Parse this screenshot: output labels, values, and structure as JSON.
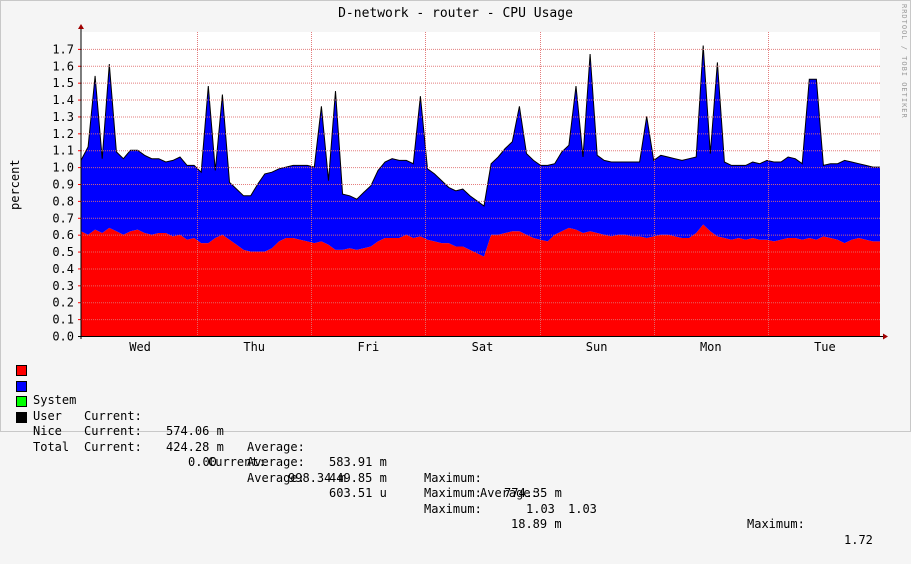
{
  "chart_data": {
    "type": "area",
    "title": "D-network - router - CPU Usage",
    "ylabel": "percent",
    "watermark": "RRDTOOL / TOBI OETIKER",
    "ylim": [
      0,
      1.8
    ],
    "yticks": [
      "0.0",
      "0.1",
      "0.2",
      "0.3",
      "0.4",
      "0.5",
      "0.6",
      "0.7",
      "0.8",
      "0.9",
      "1.0",
      "1.1",
      "1.2",
      "1.3",
      "1.4",
      "1.5",
      "1.6",
      "1.7"
    ],
    "xticks": [
      "Wed",
      "Thu",
      "Fri",
      "Sat",
      "Sun",
      "Mon",
      "Tue"
    ],
    "stacked": true,
    "grid": true,
    "series": [
      {
        "name": "System",
        "color": "#ff0000",
        "values": [
          0.62,
          0.6,
          0.63,
          0.61,
          0.64,
          0.62,
          0.6,
          0.62,
          0.63,
          0.61,
          0.6,
          0.61,
          0.61,
          0.59,
          0.6,
          0.57,
          0.58,
          0.55,
          0.55,
          0.58,
          0.6,
          0.57,
          0.54,
          0.51,
          0.5,
          0.5,
          0.5,
          0.52,
          0.56,
          0.58,
          0.58,
          0.57,
          0.56,
          0.55,
          0.56,
          0.54,
          0.51,
          0.51,
          0.52,
          0.51,
          0.52,
          0.53,
          0.56,
          0.58,
          0.58,
          0.58,
          0.6,
          0.58,
          0.59,
          0.57,
          0.56,
          0.55,
          0.55,
          0.53,
          0.53,
          0.51,
          0.49,
          0.47,
          0.6,
          0.6,
          0.61,
          0.62,
          0.62,
          0.6,
          0.58,
          0.57,
          0.56,
          0.6,
          0.62,
          0.64,
          0.63,
          0.61,
          0.62,
          0.61,
          0.6,
          0.59,
          0.6,
          0.6,
          0.59,
          0.59,
          0.58,
          0.59,
          0.6,
          0.6,
          0.59,
          0.58,
          0.58,
          0.61,
          0.66,
          0.62,
          0.59,
          0.58,
          0.57,
          0.58,
          0.57,
          0.58,
          0.57,
          0.57,
          0.56,
          0.57,
          0.58,
          0.58,
          0.57,
          0.58,
          0.57,
          0.59,
          0.58,
          0.57,
          0.55,
          0.57,
          0.58,
          0.57,
          0.56,
          0.56
        ],
        "current": "574.06 m",
        "average": "583.91 m",
        "maximum": "774.35 m"
      },
      {
        "name": "User",
        "color": "#0000ff",
        "values": [
          0.42,
          0.52,
          0.45,
          0.44,
          0.46,
          0.47,
          0.45,
          0.48,
          0.47,
          0.46,
          0.45,
          0.44,
          0.42,
          0.45,
          0.46,
          0.44,
          0.43,
          0.42,
          0.44,
          0.4,
          0.37,
          0.34,
          0.33,
          0.32,
          0.33,
          0.4,
          0.46,
          0.45,
          0.43,
          0.42,
          0.43,
          0.44,
          0.45,
          0.45,
          0.4,
          0.38,
          0.36,
          0.33,
          0.31,
          0.3,
          0.33,
          0.36,
          0.42,
          0.45,
          0.47,
          0.46,
          0.44,
          0.44,
          0.42,
          0.42,
          0.4,
          0.37,
          0.33,
          0.33,
          0.34,
          0.32,
          0.31,
          0.3,
          0.42,
          0.46,
          0.5,
          0.53,
          0.52,
          0.48,
          0.46,
          0.44,
          0.45,
          0.42,
          0.47,
          0.49,
          0.48,
          0.45,
          0.45,
          0.46,
          0.44,
          0.44,
          0.43,
          0.43,
          0.44,
          0.44,
          0.45,
          0.45,
          0.47,
          0.46,
          0.46,
          0.46,
          0.47,
          0.45,
          0.47,
          0.46,
          0.44,
          0.45,
          0.44,
          0.43,
          0.44,
          0.45,
          0.45,
          0.47,
          0.47,
          0.46,
          0.48,
          0.47,
          0.45,
          0.44,
          0.42,
          0.42,
          0.44,
          0.45,
          0.49,
          0.46,
          0.44,
          0.44,
          0.44,
          0.44
        ],
        "current": "424.28 m",
        "average": "449.85 m",
        "maximum": "1.03"
      },
      {
        "name": "Nice",
        "color": "#00ff00",
        "current": "0.00",
        "average": "603.51 u",
        "maximum": "18.89 m"
      },
      {
        "name": "Total",
        "color": "#000000",
        "current": "998.34 m",
        "average": "1.03",
        "maximum": "1.72"
      }
    ],
    "spikes": [
      {
        "i": 2,
        "v": 1.54
      },
      {
        "i": 4,
        "v": 1.61
      },
      {
        "i": 18,
        "v": 1.48
      },
      {
        "i": 20,
        "v": 1.43
      },
      {
        "i": 34,
        "v": 1.36
      },
      {
        "i": 36,
        "v": 1.45
      },
      {
        "i": 48,
        "v": 1.42
      },
      {
        "i": 62,
        "v": 1.36
      },
      {
        "i": 70,
        "v": 1.48
      },
      {
        "i": 72,
        "v": 1.67
      },
      {
        "i": 80,
        "v": 1.3
      },
      {
        "i": 88,
        "v": 1.72
      },
      {
        "i": 90,
        "v": 1.62
      },
      {
        "i": 103,
        "v": 1.52
      },
      {
        "i": 104,
        "v": 1.52
      }
    ],
    "legend_labels": {
      "current": "Current:",
      "average": "Average:",
      "maximum": "Maximum:"
    }
  }
}
